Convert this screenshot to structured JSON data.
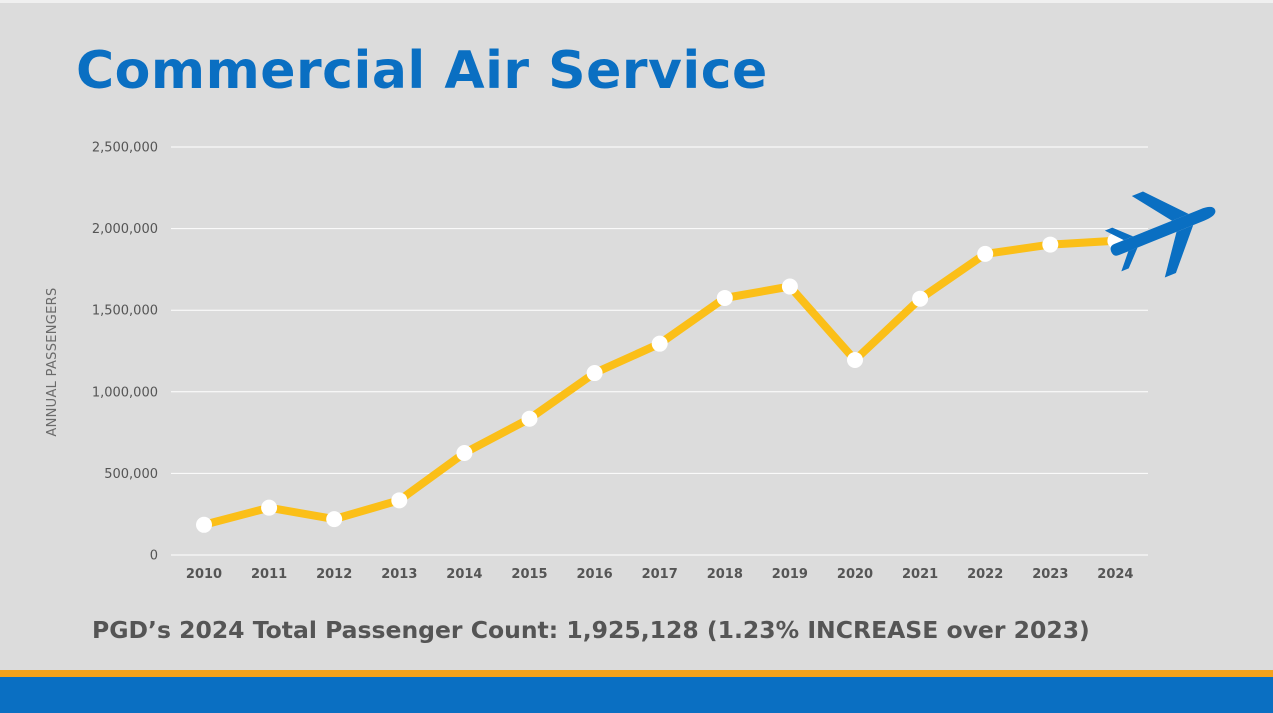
{
  "slide": {
    "title": "Commercial Air Service",
    "summary": "PGD’s 2024 Total Passenger Count: 1,925,128  (1.23% INCREASE over 2023)"
  },
  "colors": {
    "title": "#0a6fc2",
    "line": "#fbbf18",
    "marker": "#ffffff",
    "grid": "#ffffff",
    "text": "#555555",
    "band_orange": "#f5a21a",
    "band_blue": "#0a6fc2",
    "background": "#dcdcdc"
  },
  "icons": {
    "airplane": "airplane-icon"
  },
  "chart_data": {
    "type": "line",
    "title": "",
    "xlabel": "",
    "ylabel": "ANNUAL PASSENGERS",
    "categories": [
      "2010",
      "2011",
      "2012",
      "2013",
      "2014",
      "2015",
      "2016",
      "2017",
      "2018",
      "2019",
      "2020",
      "2021",
      "2022",
      "2023",
      "2024"
    ],
    "series": [
      {
        "name": "Annual Passengers",
        "values": [
          185000,
          290000,
          220000,
          335000,
          625000,
          835000,
          1115000,
          1295000,
          1575000,
          1645000,
          1195000,
          1570000,
          1845000,
          1902000,
          1925128
        ]
      }
    ],
    "ylim": [
      0,
      2500000
    ],
    "yticks": [
      0,
      500000,
      1000000,
      1500000,
      2000000,
      2500000
    ],
    "ytick_labels": [
      "0",
      "500,000",
      "1,000,000",
      "1,500,000",
      "2,000,000",
      "2,500,000"
    ],
    "grid": true,
    "legend": "none"
  }
}
